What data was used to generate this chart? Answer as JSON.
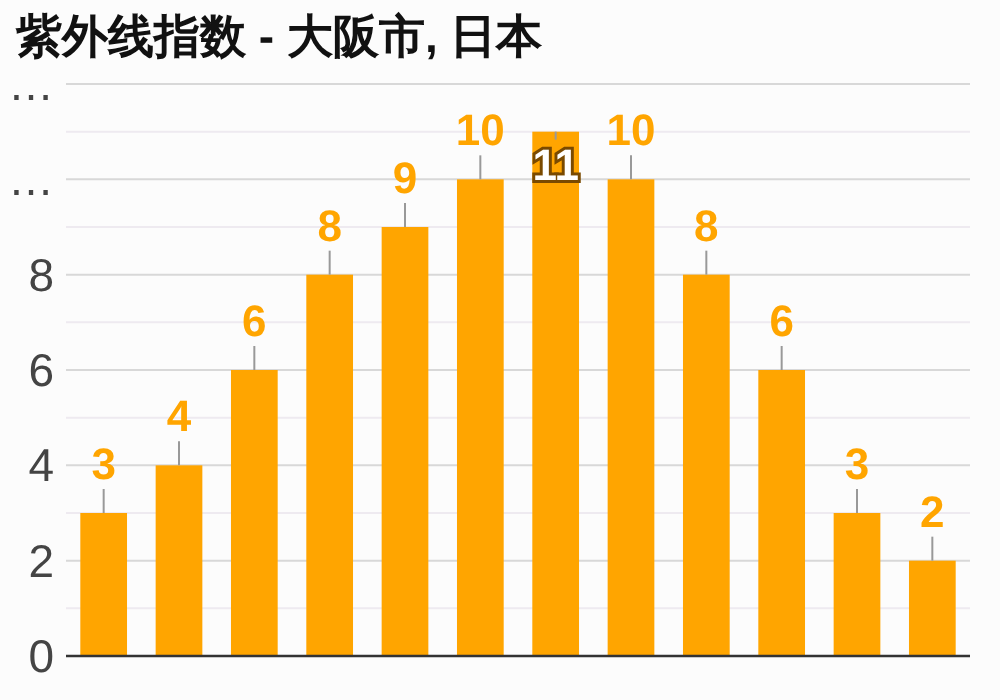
{
  "chart_data": {
    "type": "bar",
    "title": "紫外线指数 - 大阪市, 日本",
    "categories": [
      null,
      null,
      null,
      null,
      null,
      null,
      null,
      null,
      null,
      null,
      null,
      null
    ],
    "values": [
      3,
      4,
      6,
      8,
      9,
      10,
      11,
      10,
      8,
      6,
      3,
      2
    ],
    "color": "#ffa500",
    "ylim": [
      0,
      12
    ],
    "yticks": [
      0,
      2,
      4,
      6,
      8,
      {
        "value": 10,
        "label": "…"
      },
      {
        "value": 12,
        "label": "…"
      }
    ],
    "grid": true,
    "data_labels": true
  }
}
